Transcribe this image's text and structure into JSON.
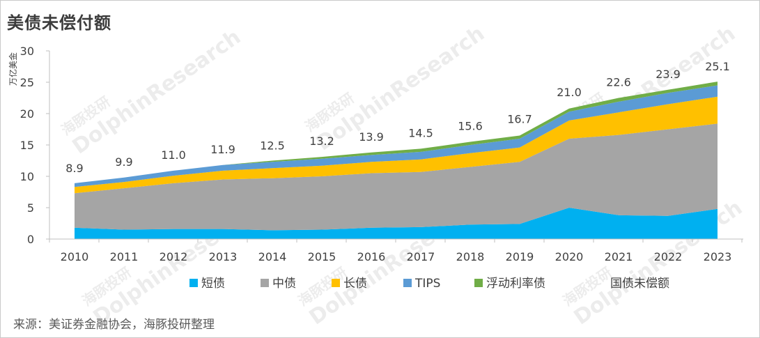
{
  "title": "美债未偿付额",
  "source": "来源：美证券金融协会，海豚投研整理",
  "watermark": {
    "cn": "海豚投研",
    "en": "DolphinResearch"
  },
  "chart_data": {
    "type": "area",
    "stacked": true,
    "title": "美债未偿付额",
    "ylabel": "万亿美金",
    "xlabel": "",
    "ylim": [
      0,
      30
    ],
    "yticks": [
      0,
      5,
      10,
      15,
      20,
      25,
      30
    ],
    "grid": false,
    "legend_position": "bottom",
    "categories": [
      "2010",
      "2011",
      "2012",
      "2013",
      "2014",
      "2015",
      "2016",
      "2017",
      "2018",
      "2019",
      "2020",
      "2021",
      "2022",
      "2023"
    ],
    "series": [
      {
        "name": "短债",
        "color": "#00b0f0",
        "values": [
          1.8,
          1.5,
          1.6,
          1.6,
          1.4,
          1.5,
          1.8,
          1.9,
          2.3,
          2.4,
          5.0,
          3.8,
          3.7,
          4.8
        ]
      },
      {
        "name": "中债",
        "color": "#a5a5a5",
        "values": [
          5.5,
          6.6,
          7.3,
          7.9,
          8.3,
          8.5,
          8.7,
          8.8,
          9.2,
          9.9,
          11.0,
          12.8,
          13.8,
          13.6
        ]
      },
      {
        "name": "长债",
        "color": "#ffc000",
        "values": [
          1.0,
          1.0,
          1.2,
          1.4,
          1.6,
          1.7,
          1.8,
          2.0,
          2.2,
          2.3,
          2.9,
          3.6,
          4.0,
          4.3
        ]
      },
      {
        "name": "TIPS",
        "color": "#5b9bd5",
        "values": [
          0.6,
          0.7,
          0.8,
          0.9,
          1.0,
          1.1,
          1.1,
          1.2,
          1.3,
          1.4,
          1.4,
          1.7,
          1.8,
          1.8
        ]
      },
      {
        "name": "浮动利率债",
        "color": "#70ad47",
        "values": [
          0.0,
          0.0,
          0.0,
          0.0,
          0.2,
          0.3,
          0.4,
          0.5,
          0.5,
          0.5,
          0.5,
          0.6,
          0.5,
          0.6
        ]
      }
    ],
    "total": {
      "name": "国债未偿额",
      "values": [
        8.9,
        9.9,
        11.0,
        11.9,
        12.5,
        13.2,
        13.9,
        14.5,
        15.6,
        16.7,
        21.0,
        22.6,
        23.9,
        25.1
      ]
    },
    "total_labels": [
      "8.9",
      "9.9",
      "11.0",
      "11.9",
      "12.5",
      "13.2",
      "13.9",
      "14.5",
      "15.6",
      "16.7",
      "21.0",
      "22.6",
      "23.9",
      "25.1"
    ]
  }
}
